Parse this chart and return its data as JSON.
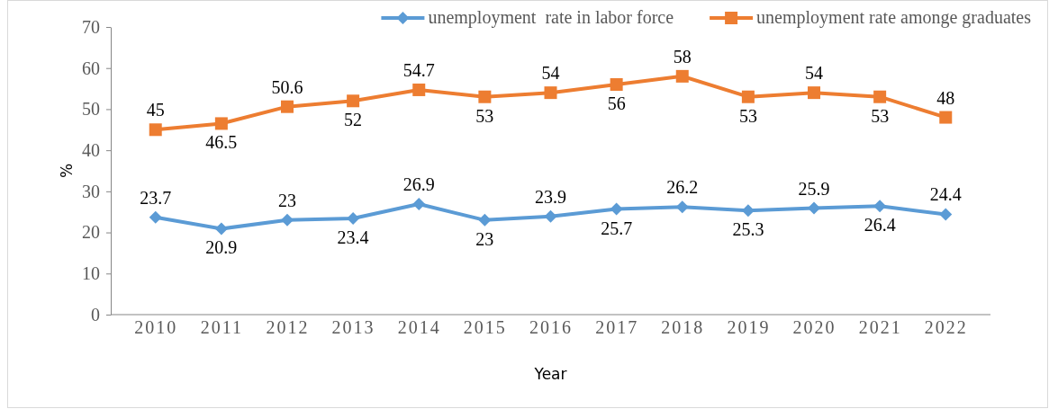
{
  "chart_data": {
    "type": "line",
    "xlabel": "Year",
    "ylabel": "%",
    "categories": [
      "2010",
      "2011",
      "2012",
      "2013",
      "2014",
      "2015",
      "2016",
      "2017",
      "2018",
      "2019",
      "2020",
      "2021",
      "2022"
    ],
    "series": [
      {
        "name": "unemployment  rate in labor force",
        "color": "#5b9bd5",
        "marker": "diamond",
        "values": [
          23.7,
          20.9,
          23,
          23.4,
          26.9,
          23,
          23.9,
          25.7,
          26.2,
          25.3,
          25.9,
          26.4,
          24.4
        ]
      },
      {
        "name": "unemployment rate amonge graduates",
        "color": "#ed7d31",
        "marker": "square",
        "values": [
          45,
          46.5,
          50.6,
          52,
          54.7,
          53,
          54,
          56,
          58,
          53,
          54,
          53,
          48
        ]
      }
    ],
    "ylim": [
      0,
      70
    ],
    "yticks": [
      0,
      10,
      20,
      30,
      40,
      50,
      60,
      70
    ],
    "grid": false,
    "legend": "top right",
    "data_labels": true,
    "line_style": "solid"
  }
}
